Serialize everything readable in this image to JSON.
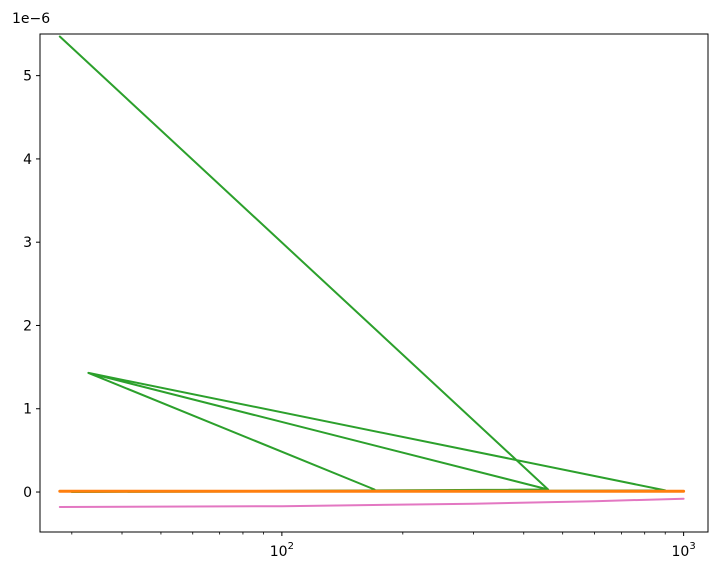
{
  "chart_data": {
    "type": "line",
    "title": "",
    "xlabel": "",
    "ylabel": "",
    "x_scale": "log",
    "xlim": [
      25,
      1150
    ],
    "ylim": [
      -0.48,
      5.5
    ],
    "y_offset_label": "1e−6",
    "x_ticks": [
      {
        "value": 100,
        "base": "10",
        "exp": "2"
      },
      {
        "value": 1000,
        "base": "10",
        "exp": "3"
      }
    ],
    "y_ticks": [
      0,
      1,
      2,
      3,
      4,
      5
    ],
    "grid": false,
    "legend": "none",
    "series": [
      {
        "color": "#2ca02c",
        "x": [
          28,
          460,
          30,
          900,
          33,
          170,
          33,
          460,
          28
        ],
        "y": [
          5.47,
          0.03,
          0.0,
          0.02,
          1.43,
          0.03,
          1.43,
          0.03,
          5.47
        ]
      },
      {
        "color": "#e377c2",
        "x": [
          28,
          100,
          300,
          600,
          1000
        ],
        "y": [
          -0.18,
          -0.17,
          -0.14,
          -0.11,
          -0.08
        ]
      },
      {
        "color": "#ff7f0e",
        "x": [
          28,
          100,
          300,
          600,
          1000
        ],
        "y": [
          0.01,
          0.01,
          0.01,
          0.01,
          0.01
        ]
      }
    ]
  }
}
